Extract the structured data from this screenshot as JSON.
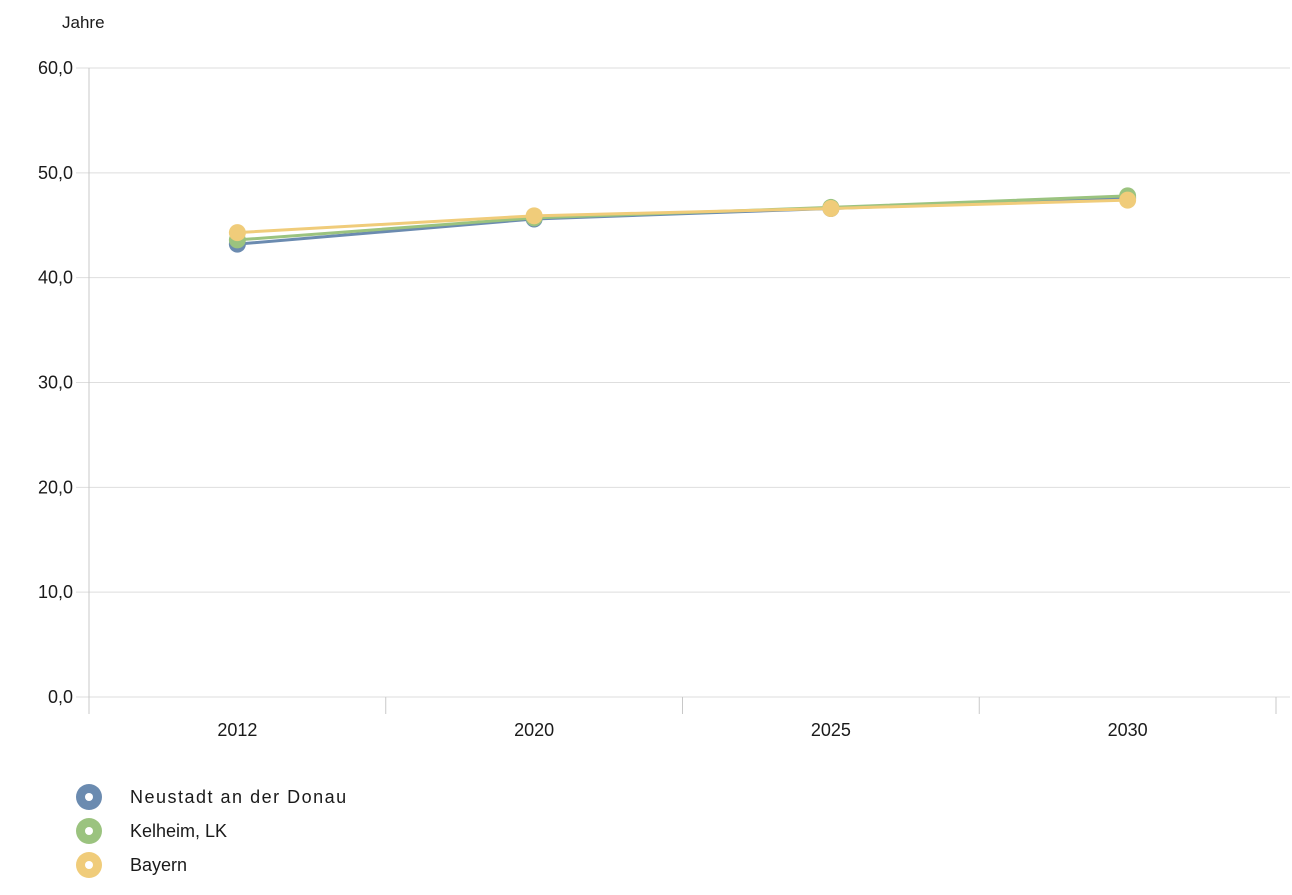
{
  "chart_data": {
    "type": "line",
    "y_unit": "Jahre",
    "categories": [
      "2012",
      "2020",
      "2025",
      "2030"
    ],
    "ylim": [
      0,
      60
    ],
    "y_ticks": [
      "0,0",
      "10,0",
      "20,0",
      "30,0",
      "40,0",
      "50,0",
      "60,0"
    ],
    "grid": true,
    "legend_position": "bottom-left",
    "series": [
      {
        "name": "Neustadt an der Donau",
        "color": "#6b8bb0",
        "values": [
          43.2,
          45.6,
          46.6,
          47.6
        ]
      },
      {
        "name": "Kelheim, LK",
        "color": "#9bc37f",
        "values": [
          43.6,
          45.7,
          46.7,
          47.8
        ]
      },
      {
        "name": "Bayern",
        "color": "#f0cc7a",
        "values": [
          44.3,
          45.9,
          46.6,
          47.4
        ]
      }
    ]
  }
}
